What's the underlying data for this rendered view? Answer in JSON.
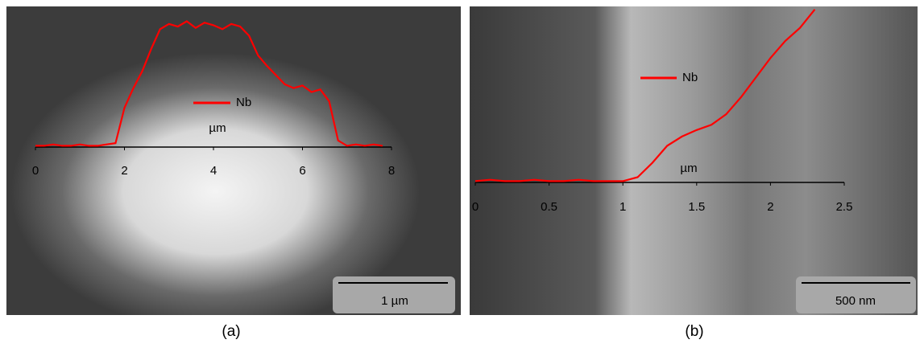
{
  "chart_data": [
    {
      "type": "line",
      "panel_label": "(a)",
      "scale_bar": "1 µm",
      "x_label": "µm",
      "x": [
        0,
        0.2,
        0.4,
        0.6,
        0.8,
        1.0,
        1.2,
        1.4,
        1.6,
        1.8,
        2.0,
        2.2,
        2.4,
        2.6,
        2.8,
        3.0,
        3.2,
        3.4,
        3.6,
        3.8,
        4.0,
        4.2,
        4.4,
        4.6,
        4.8,
        5.0,
        5.2,
        5.4,
        5.6,
        5.8,
        6.0,
        6.2,
        6.4,
        6.6,
        6.8,
        7.0,
        7.2,
        7.4,
        7.6,
        7.8
      ],
      "series": [
        {
          "name": "Nb",
          "color": "#ff0000",
          "values": [
            1,
            1,
            2,
            1,
            1,
            2,
            1,
            1,
            2,
            3,
            30,
            45,
            58,
            75,
            90,
            94,
            92,
            96,
            91,
            95,
            93,
            90,
            94,
            92,
            85,
            70,
            62,
            55,
            48,
            45,
            47,
            42,
            44,
            35,
            5,
            1,
            2,
            1,
            2,
            1
          ]
        }
      ],
      "xlim": [
        0,
        8
      ],
      "xticks": [
        0,
        2,
        4,
        6,
        8
      ],
      "ylim": [
        0,
        100
      ]
    },
    {
      "type": "line",
      "panel_label": "(b)",
      "scale_bar": "500 nm",
      "x_label": "µm",
      "x": [
        0,
        0.1,
        0.2,
        0.3,
        0.4,
        0.5,
        0.6,
        0.7,
        0.8,
        0.9,
        1.0,
        1.1,
        1.2,
        1.3,
        1.4,
        1.5,
        1.6,
        1.7,
        1.8,
        1.9,
        2.0,
        2.1,
        2.2,
        2.3
      ],
      "series": [
        {
          "name": "Nb",
          "color": "#ff0000",
          "values": [
            1,
            2,
            1,
            1,
            2,
            1,
            1,
            2,
            1,
            1,
            1,
            4,
            15,
            28,
            35,
            40,
            44,
            52,
            65,
            80,
            95,
            108,
            118,
            132
          ]
        }
      ],
      "xlim": [
        0,
        2.5
      ],
      "xticks": [
        0,
        0.5,
        1,
        1.5,
        2,
        2.5
      ],
      "ylim": [
        0,
        140
      ]
    }
  ]
}
